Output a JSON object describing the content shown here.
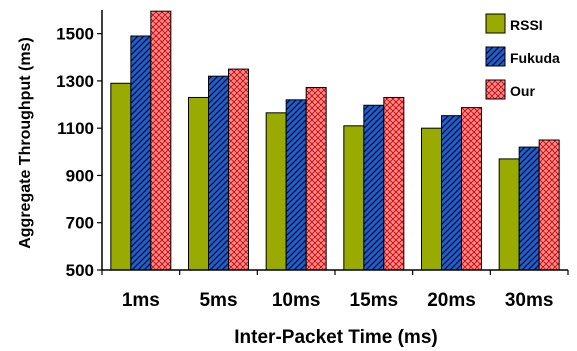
{
  "chart_data": {
    "type": "bar",
    "title": "",
    "xlabel": "Inter-Packet Time (ms)",
    "ylabel": "Aggregate Throughput (ms)",
    "categories": [
      "1ms",
      "5ms",
      "10ms",
      "15ms",
      "20ms",
      "30ms"
    ],
    "ylim": [
      500,
      1600
    ],
    "yticks": [
      500,
      700,
      900,
      1100,
      1300,
      1500
    ],
    "grid": false,
    "legend_position": "top-right",
    "series": [
      {
        "name": "RSSI",
        "values": [
          1290,
          1230,
          1165,
          1110,
          1100,
          970
        ],
        "color": "#99aa00",
        "pattern": "solid"
      },
      {
        "name": "Fukuda",
        "values": [
          1490,
          1320,
          1220,
          1197,
          1153,
          1020
        ],
        "color": "#1f5fcc",
        "pattern": "diagonal-hatch"
      },
      {
        "name": "Our",
        "values": [
          1595,
          1350,
          1272,
          1230,
          1187,
          1050
        ],
        "color": "#ff8080",
        "pattern": "crosshatch"
      }
    ]
  }
}
